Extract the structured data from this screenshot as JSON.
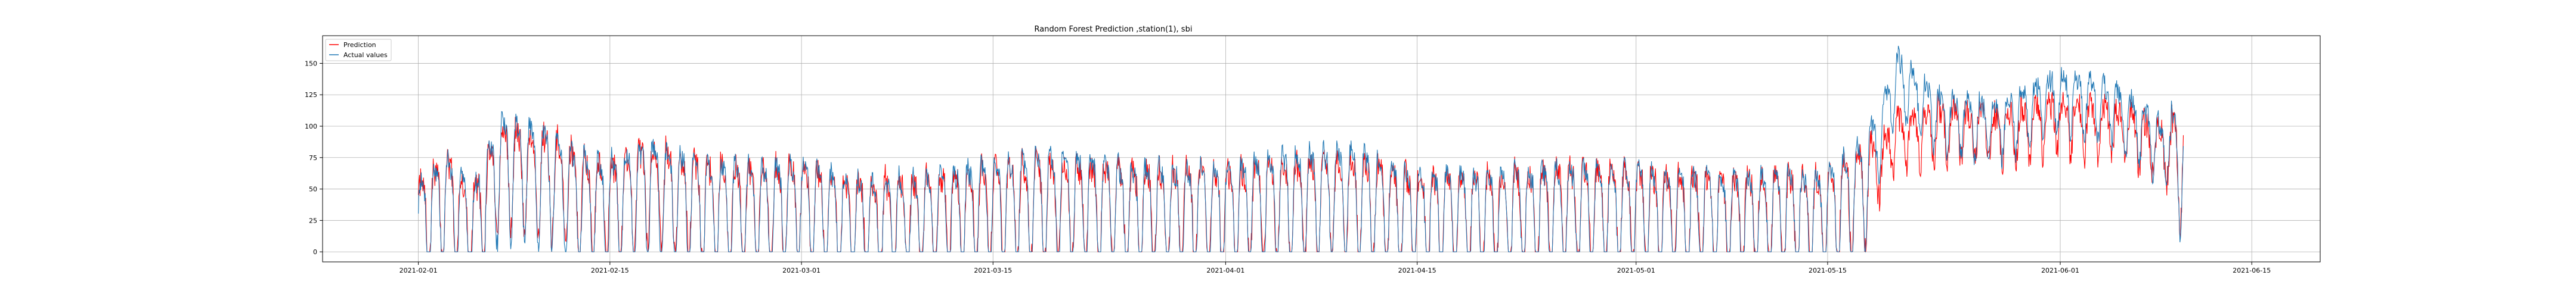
{
  "chart_data": {
    "type": "line",
    "title": "Random Forest Prediction ,station(1), sbi",
    "xlabel": "",
    "ylabel": "",
    "x_domain": [
      "2021-01-25",
      "2021-06-20"
    ],
    "ylim": [
      -8,
      172
    ],
    "x_ticks": [
      "2021-02-01",
      "2021-02-15",
      "2021-03-01",
      "2021-03-15",
      "2021-04-01",
      "2021-04-15",
      "2021-05-01",
      "2021-05-15",
      "2021-06-01",
      "2021-06-15"
    ],
    "y_ticks": [
      0,
      25,
      50,
      75,
      100,
      125,
      150
    ],
    "grid": true,
    "legend_position": "top-left",
    "data_start": "2021-02-01",
    "data_end": "2021-06-10",
    "series": [
      {
        "name": "Prediction",
        "color": "#ff0000",
        "keypoints": [
          [
            "2021-02-01",
            22
          ],
          [
            "2021-02-03",
            45
          ],
          [
            "2021-02-05",
            20
          ],
          [
            "2021-02-07",
            70
          ],
          [
            "2021-02-09",
            65
          ],
          [
            "2021-02-11",
            60
          ],
          [
            "2021-02-13",
            45
          ],
          [
            "2021-02-15",
            40
          ],
          [
            "2021-02-18",
            55
          ],
          [
            "2021-02-22",
            40
          ],
          [
            "2021-02-26",
            35
          ],
          [
            "2021-03-01",
            40
          ],
          [
            "2021-03-05",
            25
          ],
          [
            "2021-03-10",
            28
          ],
          [
            "2021-03-15",
            38
          ],
          [
            "2021-03-20",
            42
          ],
          [
            "2021-03-25",
            35
          ],
          [
            "2021-04-01",
            35
          ],
          [
            "2021-04-05",
            40
          ],
          [
            "2021-04-10",
            45
          ],
          [
            "2021-04-15",
            30
          ],
          [
            "2021-04-20",
            30
          ],
          [
            "2021-04-25",
            35
          ],
          [
            "2021-05-01",
            35
          ],
          [
            "2021-05-05",
            30
          ],
          [
            "2021-05-10",
            30
          ],
          [
            "2021-05-15",
            30
          ],
          [
            "2021-05-18",
            55
          ],
          [
            "2021-05-20",
            90
          ],
          [
            "2021-05-23",
            100
          ],
          [
            "2021-05-27",
            95
          ],
          [
            "2021-06-01",
            105
          ],
          [
            "2021-06-05",
            100
          ],
          [
            "2021-06-08",
            85
          ],
          [
            "2021-06-10",
            70
          ]
        ]
      },
      {
        "name": "Actual values",
        "color": "#1f77b4",
        "keypoints": [
          [
            "2021-02-01",
            20
          ],
          [
            "2021-02-03",
            42
          ],
          [
            "2021-02-05",
            18
          ],
          [
            "2021-02-07",
            72
          ],
          [
            "2021-02-09",
            68
          ],
          [
            "2021-02-11",
            58
          ],
          [
            "2021-02-13",
            42
          ],
          [
            "2021-02-15",
            38
          ],
          [
            "2021-02-18",
            52
          ],
          [
            "2021-02-22",
            38
          ],
          [
            "2021-02-26",
            33
          ],
          [
            "2021-03-01",
            38
          ],
          [
            "2021-03-05",
            22
          ],
          [
            "2021-03-10",
            25
          ],
          [
            "2021-03-15",
            36
          ],
          [
            "2021-03-20",
            45
          ],
          [
            "2021-03-25",
            33
          ],
          [
            "2021-04-01",
            33
          ],
          [
            "2021-04-05",
            42
          ],
          [
            "2021-04-10",
            48
          ],
          [
            "2021-04-15",
            28
          ],
          [
            "2021-04-20",
            28
          ],
          [
            "2021-04-25",
            33
          ],
          [
            "2021-05-01",
            33
          ],
          [
            "2021-05-05",
            28
          ],
          [
            "2021-05-10",
            28
          ],
          [
            "2021-05-15",
            28
          ],
          [
            "2021-05-18",
            60
          ],
          [
            "2021-05-20",
            140
          ],
          [
            "2021-05-23",
            110
          ],
          [
            "2021-05-27",
            100
          ],
          [
            "2021-06-01",
            125
          ],
          [
            "2021-06-05",
            115
          ],
          [
            "2021-06-08",
            90
          ],
          [
            "2021-06-10",
            72
          ]
        ]
      }
    ]
  }
}
